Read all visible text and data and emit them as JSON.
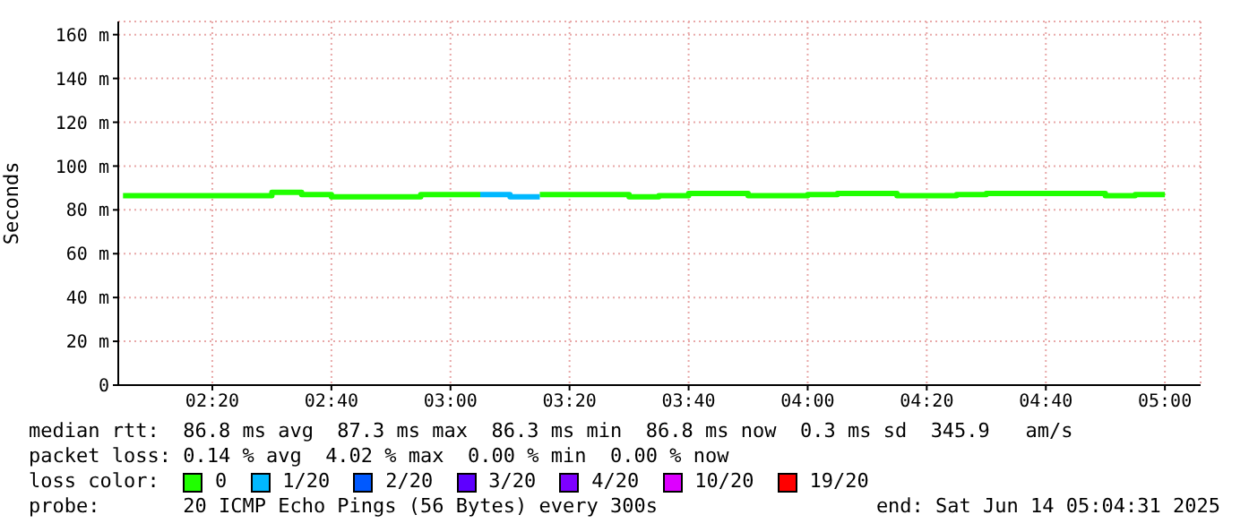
{
  "chart_data": {
    "type": "line",
    "ylabel": "Seconds",
    "legend_title": "loss color:",
    "legend": "bottom",
    "grid": true,
    "x": [
      2.0833,
      2.1667,
      2.25,
      2.3333,
      2.4167,
      2.5,
      2.5833,
      2.6667,
      2.75,
      2.8333,
      2.9167,
      3,
      3.0833,
      3.1667,
      3.25,
      3.3333,
      3.4167,
      3.5,
      3.5833,
      3.6667,
      3.75,
      3.8333,
      3.9167,
      4,
      4.0833,
      4.1667,
      4.25,
      4.3333,
      4.4167,
      4.5,
      4.5833,
      4.6667,
      4.75,
      4.8333,
      4.9167,
      5
    ],
    "xlim": [
      2.07,
      5.1
    ],
    "xticks": [
      {
        "value": 2.3333,
        "label": "02:20"
      },
      {
        "value": 2.6667,
        "label": "02:40"
      },
      {
        "value": 3,
        "label": "03:00"
      },
      {
        "value": 3.3333,
        "label": "03:20"
      },
      {
        "value": 3.6667,
        "label": "03:40"
      },
      {
        "value": 4,
        "label": "04:00"
      },
      {
        "value": 4.3333,
        "label": "04:20"
      },
      {
        "value": 4.6667,
        "label": "04:40"
      },
      {
        "value": 5,
        "label": "05:00"
      }
    ],
    "ylim": [
      0,
      166
    ],
    "yticks": [
      0,
      {
        "value": 20,
        "label": "20 m"
      },
      {
        "value": 40,
        "label": "40 m"
      },
      {
        "value": 60,
        "label": "60 m"
      },
      {
        "value": 80,
        "label": "80 m"
      },
      {
        "value": 100,
        "label": "100 m"
      },
      {
        "value": 120,
        "label": "120 m"
      },
      {
        "value": 140,
        "label": "140 m"
      },
      {
        "value": 160,
        "label": "160 m"
      }
    ],
    "series": [
      {
        "name": "0",
        "color": "#20ff00",
        "values": [
          86.5,
          86.5,
          86.5,
          86.5,
          86.5,
          88,
          87,
          86,
          86,
          86,
          87,
          87,
          87,
          null,
          87,
          87,
          87,
          86,
          86.5,
          87.5,
          87.5,
          86.5,
          86.5,
          87,
          87.5,
          87.5,
          86.5,
          86.5,
          87,
          87.5,
          87.5,
          87.5,
          87.5,
          86.5,
          87,
          87
        ]
      },
      {
        "name": "1/20",
        "color": "#00b8ff",
        "x": [
          3.0833,
          3.1667,
          3.25
        ],
        "values": [
          87,
          86,
          86
        ]
      },
      {
        "name": "2/20",
        "color": "#0059ff",
        "values": [
          null,
          null,
          null,
          null,
          null,
          null,
          null,
          null,
          null,
          null,
          null,
          null,
          null,
          null,
          null,
          null,
          null,
          null,
          null,
          null,
          null,
          null,
          null,
          null,
          null,
          null,
          null,
          null,
          null,
          null,
          null,
          null,
          null,
          null,
          null,
          null
        ]
      },
      {
        "name": "3/20",
        "color": "#5e00ff",
        "values": [
          null,
          null,
          null,
          null,
          null,
          null,
          null,
          null,
          null,
          null,
          null,
          null,
          null,
          null,
          null,
          null,
          null,
          null,
          null,
          null,
          null,
          null,
          null,
          null,
          null,
          null,
          null,
          null,
          null,
          null,
          null,
          null,
          null,
          null,
          null,
          null
        ]
      },
      {
        "name": "4/20",
        "color": "#7e00ff",
        "values": [
          null,
          null,
          null,
          null,
          null,
          null,
          null,
          null,
          null,
          null,
          null,
          null,
          null,
          null,
          null,
          null,
          null,
          null,
          null,
          null,
          null,
          null,
          null,
          null,
          null,
          null,
          null,
          null,
          null,
          null,
          null,
          null,
          null,
          null,
          null,
          null
        ]
      },
      {
        "name": "10/20",
        "color": "#dd00ff",
        "values": [
          null,
          null,
          null,
          null,
          null,
          null,
          null,
          null,
          null,
          null,
          null,
          null,
          null,
          null,
          null,
          null,
          null,
          null,
          null,
          null,
          null,
          null,
          null,
          null,
          null,
          null,
          null,
          null,
          null,
          null,
          null,
          null,
          null,
          null,
          null,
          null
        ]
      },
      {
        "name": "19/20",
        "color": "#ff0000",
        "values": [
          null,
          null,
          null,
          null,
          null,
          null,
          null,
          null,
          null,
          null,
          null,
          null,
          null,
          null,
          null,
          null,
          null,
          null,
          null,
          null,
          null,
          null,
          null,
          null,
          null,
          null,
          null,
          null,
          null,
          null,
          null,
          null,
          null,
          null,
          null,
          null
        ]
      }
    ],
    "annotations": [
      "median rtt:  86.8 ms avg  87.3 ms max  86.3 ms min  86.8 ms now  0.3 ms sd  345.9   am/s",
      "packet loss: 0.14 % avg  4.02 % max  0.00 % min  0.00 % now",
      "probe:       20 ICMP Echo Pings (56 Bytes) every 300s",
      "end: Sat Jun 14 05:04:31 2025"
    ]
  }
}
